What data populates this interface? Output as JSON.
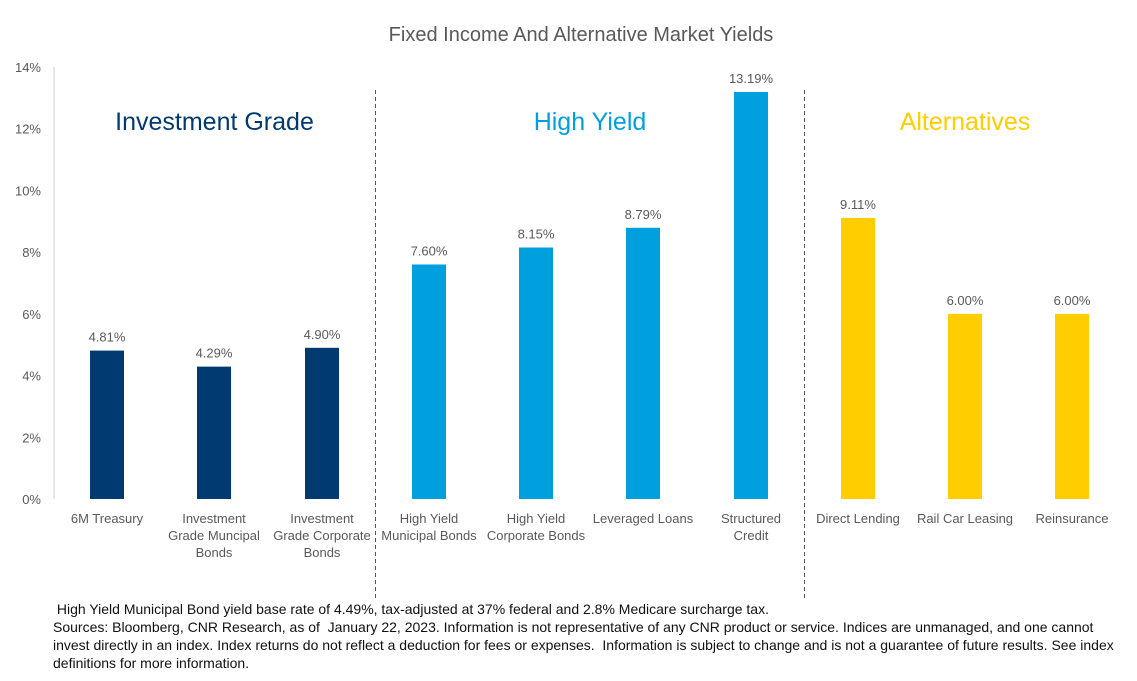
{
  "chart_data": {
    "type": "bar",
    "title": "Fixed Income And Alternative Market Yields",
    "ylim": [
      0,
      14
    ],
    "yticks": [
      "0%",
      "2%",
      "4%",
      "6%",
      "8%",
      "10%",
      "12%",
      "14%"
    ],
    "yticks_values": [
      0,
      2,
      4,
      6,
      8,
      10,
      12,
      14
    ],
    "grid": false,
    "categories": [
      [
        "6M Treasury"
      ],
      [
        "Investment",
        "Grade Muncipal",
        "Bonds"
      ],
      [
        "Investment",
        "Grade Corporate",
        "Bonds"
      ],
      [
        "High Yield",
        "Municipal Bonds"
      ],
      [
        "High Yield",
        "Corporate Bonds"
      ],
      [
        "Leveraged Loans"
      ],
      [
        "Structured",
        "Credit"
      ],
      [
        "Direct Lending"
      ],
      [
        "Rail Car Leasing"
      ],
      [
        "Reinsurance"
      ]
    ],
    "values": [
      4.81,
      4.29,
      4.9,
      7.6,
      8.15,
      8.79,
      13.19,
      9.11,
      6.0,
      6.0
    ],
    "data_labels": [
      "4.81%",
      "4.29%",
      "4.90%",
      "7.60%",
      "8.15%",
      "8.79%",
      "13.19%",
      "9.11%",
      "6.00%",
      "6.00%"
    ],
    "groups": [
      {
        "name": "Investment Grade",
        "color": "#003A70",
        "indices": [
          0,
          1,
          2
        ]
      },
      {
        "name": "High Yield",
        "color": "#00A0DF",
        "indices": [
          3,
          4,
          5,
          6
        ]
      },
      {
        "name": "Alternatives",
        "color": "#FFCD00",
        "indices": [
          7,
          8,
          9
        ]
      }
    ]
  },
  "footnote": {
    "line1": " High Yield Municipal Bond yield base rate of 4.49%, tax-adjusted at 37% federal and 2.8% Medicare surcharge tax.",
    "line2": "Sources: Bloomberg, CNR Research, as of  January 22, 2023. Information is not representative of any CNR product or service. Indices are unmanaged, and one cannot invest directly in an index. Index returns do not reflect a deduction for fees or expenses.  Information is subject to change and is not a guarantee of future results. See index definitions for more information."
  }
}
